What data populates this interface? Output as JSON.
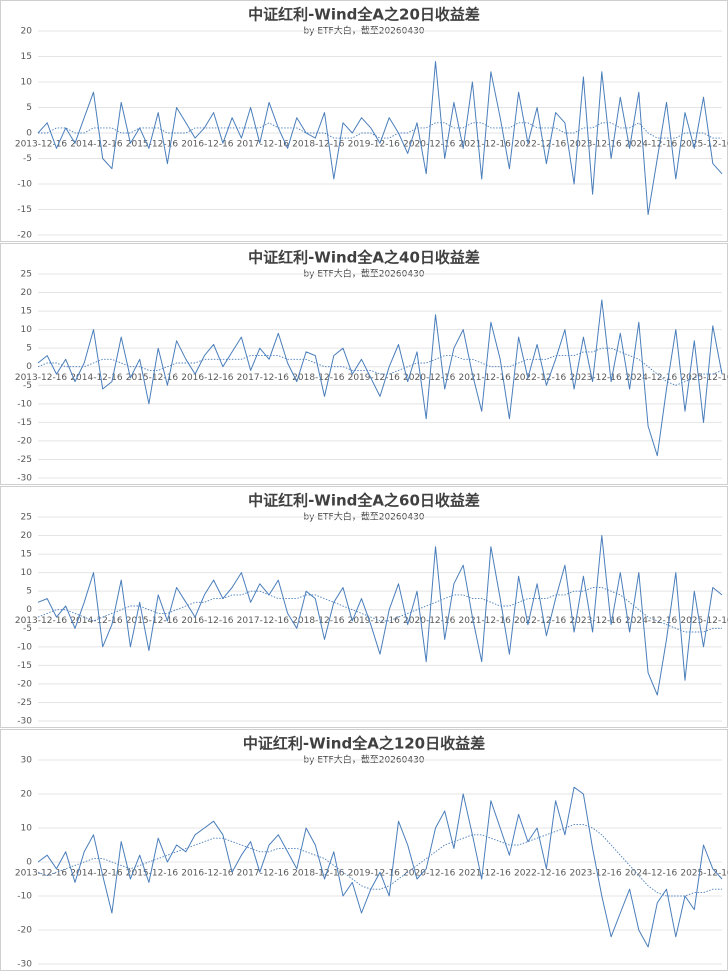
{
  "chart_data": [
    {
      "type": "line",
      "title": "中证红利-Wind全A之20日收益差",
      "subtitle": "by ETF大白，截至20260430",
      "categories": [
        "2013-12-16",
        null,
        null,
        null,
        null,
        null,
        "2014-12-16",
        null,
        null,
        null,
        null,
        null,
        "2015-12-16",
        null,
        null,
        null,
        null,
        null,
        "2016-12-16",
        null,
        null,
        null,
        null,
        null,
        "2017-12-16",
        null,
        null,
        null,
        null,
        null,
        "2018-12-16",
        null,
        null,
        null,
        null,
        null,
        "2019-12-16",
        null,
        null,
        null,
        null,
        null,
        "2020-12-16",
        null,
        null,
        null,
        null,
        null,
        "2021-12-16",
        null,
        null,
        null,
        null,
        null,
        "2022-12-16",
        null,
        null,
        null,
        null,
        null,
        "2023-12-16",
        null,
        null,
        null,
        null,
        null,
        "2024-12-16",
        null,
        null,
        null,
        null,
        null,
        "2025-12-16",
        null,
        null
      ],
      "ylim": [
        -20,
        20
      ],
      "yticks": [
        -20,
        -15,
        -10,
        -5,
        0,
        5,
        10,
        15,
        20
      ],
      "grid": true,
      "series": [
        {
          "color": "#4a7ebb",
          "line_style": "solid",
          "values": [
            0,
            2,
            -3,
            1,
            -2,
            3,
            8,
            -5,
            -7,
            6,
            -2,
            1,
            -3,
            4,
            -6,
            5,
            2,
            -1,
            1,
            4,
            -2,
            3,
            -1,
            5,
            -2,
            6,
            1,
            -3,
            3,
            0,
            -1,
            4,
            -9,
            2,
            0,
            3,
            1,
            -2,
            3,
            0,
            -4,
            2,
            -8,
            14,
            -5,
            6,
            -3,
            10,
            -9,
            12,
            3,
            -7,
            8,
            -2,
            5,
            -6,
            4,
            2,
            -10,
            11,
            -12,
            12,
            -5,
            7,
            -3,
            8,
            -16,
            -5,
            6,
            -9,
            4,
            -3,
            7,
            -6,
            -8
          ]
        },
        {
          "color": "#4a7ebb",
          "line_style": "dotted",
          "values": [
            0,
            0,
            1,
            1,
            0,
            0,
            1,
            1,
            1,
            0,
            0,
            1,
            1,
            1,
            0,
            0,
            0,
            1,
            1,
            1,
            1,
            1,
            1,
            1,
            1,
            2,
            1,
            1,
            1,
            0,
            0,
            0,
            -1,
            -1,
            -1,
            0,
            0,
            -1,
            -1,
            0,
            0,
            1,
            1,
            2,
            2,
            1,
            1,
            2,
            2,
            1,
            1,
            1,
            2,
            2,
            1,
            1,
            1,
            0,
            0,
            1,
            1,
            2,
            2,
            1,
            1,
            2,
            0,
            -1,
            -1,
            -1,
            0,
            0,
            0,
            -1,
            -1
          ]
        }
      ]
    },
    {
      "type": "line",
      "title": "中证红利-Wind全A之40日收益差",
      "subtitle": "by ETF大白，截至20260430",
      "categories": [
        "2013-12-16",
        null,
        null,
        null,
        null,
        null,
        "2014-12-16",
        null,
        null,
        null,
        null,
        null,
        "2015-12-16",
        null,
        null,
        null,
        null,
        null,
        "2016-12-16",
        null,
        null,
        null,
        null,
        null,
        "2017-12-16",
        null,
        null,
        null,
        null,
        null,
        "2018-12-16",
        null,
        null,
        null,
        null,
        null,
        "2019-12-16",
        null,
        null,
        null,
        null,
        null,
        "2020-12-16",
        null,
        null,
        null,
        null,
        null,
        "2021-12-16",
        null,
        null,
        null,
        null,
        null,
        "2022-12-16",
        null,
        null,
        null,
        null,
        null,
        "2023-12-16",
        null,
        null,
        null,
        null,
        null,
        "2024-12-16",
        null,
        null,
        null,
        null,
        null,
        "2025-12-16",
        null,
        null
      ],
      "ylim": [
        -30,
        25
      ],
      "yticks": [
        -30,
        -25,
        -20,
        -15,
        -10,
        -5,
        0,
        5,
        10,
        15,
        20,
        25
      ],
      "grid": true,
      "series": [
        {
          "color": "#4a7ebb",
          "line_style": "solid",
          "values": [
            1,
            3,
            -2,
            2,
            -4,
            1,
            10,
            -6,
            -4,
            8,
            -3,
            2,
            -10,
            5,
            -5,
            7,
            2,
            -2,
            3,
            6,
            0,
            4,
            8,
            -1,
            5,
            2,
            9,
            1,
            -4,
            4,
            3,
            -8,
            3,
            5,
            -2,
            2,
            -3,
            -8,
            0,
            6,
            -4,
            4,
            -14,
            14,
            -6,
            5,
            10,
            -2,
            -12,
            12,
            2,
            -14,
            8,
            -3,
            6,
            -5,
            2,
            10,
            -6,
            8,
            -4,
            18,
            -4,
            9,
            -6,
            12,
            -16,
            -24,
            -6,
            10,
            -12,
            7,
            -15,
            11,
            -2
          ]
        },
        {
          "color": "#4a7ebb",
          "line_style": "dotted",
          "values": [
            0,
            1,
            1,
            0,
            0,
            0,
            1,
            2,
            2,
            1,
            0,
            0,
            -1,
            -1,
            0,
            1,
            1,
            1,
            2,
            2,
            2,
            2,
            2,
            3,
            3,
            3,
            3,
            2,
            2,
            2,
            1,
            0,
            0,
            0,
            -1,
            -1,
            -1,
            -2,
            -2,
            -1,
            0,
            1,
            1,
            2,
            3,
            3,
            2,
            2,
            1,
            0,
            0,
            0,
            1,
            2,
            2,
            2,
            3,
            3,
            3,
            4,
            4,
            5,
            5,
            4,
            3,
            2,
            0,
            -2,
            -4,
            -5,
            -4,
            -3,
            -2,
            -2,
            -1
          ]
        }
      ]
    },
    {
      "type": "line",
      "title": "中证红利-Wind全A之60日收益差",
      "subtitle": "by ETF大白，截至20260430",
      "categories": [
        "2013-12-16",
        null,
        null,
        null,
        null,
        null,
        "2014-12-16",
        null,
        null,
        null,
        null,
        null,
        "2015-12-16",
        null,
        null,
        null,
        null,
        null,
        "2016-12-16",
        null,
        null,
        null,
        null,
        null,
        "2017-12-16",
        null,
        null,
        null,
        null,
        null,
        "2018-12-16",
        null,
        null,
        null,
        null,
        null,
        "2019-12-16",
        null,
        null,
        null,
        null,
        null,
        "2020-12-16",
        null,
        null,
        null,
        null,
        null,
        "2021-12-16",
        null,
        null,
        null,
        null,
        null,
        "2022-12-16",
        null,
        null,
        null,
        null,
        null,
        "2023-12-16",
        null,
        null,
        null,
        null,
        null,
        "2024-12-16",
        null,
        null,
        null,
        null,
        null,
        "2025-12-16",
        null,
        null
      ],
      "ylim": [
        -30,
        25
      ],
      "yticks": [
        -30,
        -25,
        -20,
        -15,
        -10,
        -5,
        0,
        5,
        10,
        15,
        20,
        25
      ],
      "grid": true,
      "series": [
        {
          "color": "#4a7ebb",
          "line_style": "solid",
          "values": [
            2,
            3,
            -2,
            1,
            -5,
            2,
            10,
            -10,
            -4,
            8,
            -10,
            2,
            -11,
            4,
            -3,
            6,
            2,
            -2,
            4,
            8,
            3,
            6,
            10,
            2,
            7,
            4,
            8,
            -1,
            -5,
            5,
            3,
            -8,
            2,
            6,
            -3,
            3,
            -4,
            -12,
            0,
            7,
            -4,
            5,
            -14,
            17,
            -8,
            7,
            12,
            -2,
            -14,
            17,
            3,
            -12,
            9,
            -4,
            7,
            -7,
            3,
            12,
            -6,
            9,
            -6,
            20,
            -4,
            10,
            -6,
            10,
            -17,
            -23,
            -8,
            10,
            -19,
            5,
            -10,
            6,
            4
          ]
        },
        {
          "color": "#4a7ebb",
          "line_style": "dotted",
          "values": [
            -2,
            -1,
            0,
            0,
            -1,
            -2,
            -3,
            -2,
            -1,
            0,
            1,
            1,
            0,
            -1,
            -1,
            0,
            1,
            2,
            2,
            3,
            3,
            4,
            4,
            5,
            5,
            4,
            3,
            3,
            3,
            4,
            4,
            3,
            2,
            1,
            0,
            -1,
            -2,
            -3,
            -3,
            -2,
            -1,
            0,
            1,
            2,
            3,
            4,
            4,
            3,
            3,
            2,
            1,
            1,
            2,
            3,
            3,
            3,
            4,
            4,
            5,
            5,
            6,
            6,
            5,
            4,
            2,
            0,
            -2,
            -3,
            -4,
            -5,
            -6,
            -6,
            -6,
            -5,
            -5
          ]
        }
      ]
    },
    {
      "type": "line",
      "title": "中证红利-Wind全A之120日收益差",
      "subtitle": "by ETF大白，截至20260430",
      "categories": [
        "2013-12-16",
        null,
        null,
        null,
        null,
        null,
        "2014-12-16",
        null,
        null,
        null,
        null,
        null,
        "2015-12-16",
        null,
        null,
        null,
        null,
        null,
        "2016-12-16",
        null,
        null,
        null,
        null,
        null,
        "2017-12-16",
        null,
        null,
        null,
        null,
        null,
        "2018-12-16",
        null,
        null,
        null,
        null,
        null,
        "2019-12-16",
        null,
        null,
        null,
        null,
        null,
        "2020-12-16",
        null,
        null,
        null,
        null,
        null,
        "2021-12-16",
        null,
        null,
        null,
        null,
        null,
        "2022-12-16",
        null,
        null,
        null,
        null,
        null,
        "2023-12-16",
        null,
        null,
        null,
        null,
        null,
        "2024-12-16",
        null,
        null,
        null,
        null,
        null,
        "2025-12-16",
        null,
        null
      ],
      "ylim": [
        -30,
        30
      ],
      "yticks": [
        -30,
        -20,
        -10,
        0,
        10,
        20,
        30
      ],
      "grid": true,
      "series": [
        {
          "color": "#4a7ebb",
          "line_style": "solid",
          "values": [
            0,
            2,
            -2,
            3,
            -6,
            3,
            8,
            -4,
            -15,
            6,
            -5,
            2,
            -6,
            7,
            0,
            5,
            3,
            8,
            10,
            12,
            8,
            -3,
            2,
            6,
            -3,
            5,
            8,
            3,
            -2,
            10,
            5,
            -5,
            3,
            -10,
            -6,
            -15,
            -8,
            -3,
            -10,
            12,
            5,
            -5,
            -2,
            10,
            15,
            4,
            20,
            8,
            -5,
            18,
            10,
            2,
            14,
            6,
            10,
            -2,
            18,
            8,
            22,
            20,
            4,
            -10,
            -22,
            -15,
            -8,
            -20,
            -25,
            -12,
            -8,
            -22,
            -10,
            -14,
            5,
            -2,
            -5
          ]
        },
        {
          "color": "#4a7ebb",
          "line_style": "dotted",
          "values": [
            -3,
            -4,
            -3,
            -2,
            -1,
            0,
            1,
            1,
            0,
            -1,
            -2,
            -1,
            0,
            1,
            2,
            3,
            4,
            5,
            6,
            7,
            7,
            6,
            5,
            4,
            3,
            3,
            4,
            4,
            4,
            3,
            2,
            1,
            -1,
            -3,
            -5,
            -7,
            -8,
            -8,
            -7,
            -5,
            -3,
            -1,
            1,
            3,
            5,
            6,
            7,
            8,
            8,
            7,
            6,
            5,
            5,
            6,
            7,
            8,
            9,
            10,
            11,
            11,
            10,
            8,
            5,
            2,
            -1,
            -4,
            -7,
            -9,
            -10,
            -10,
            -10,
            -9,
            -9,
            -8,
            -8
          ]
        }
      ]
    }
  ]
}
